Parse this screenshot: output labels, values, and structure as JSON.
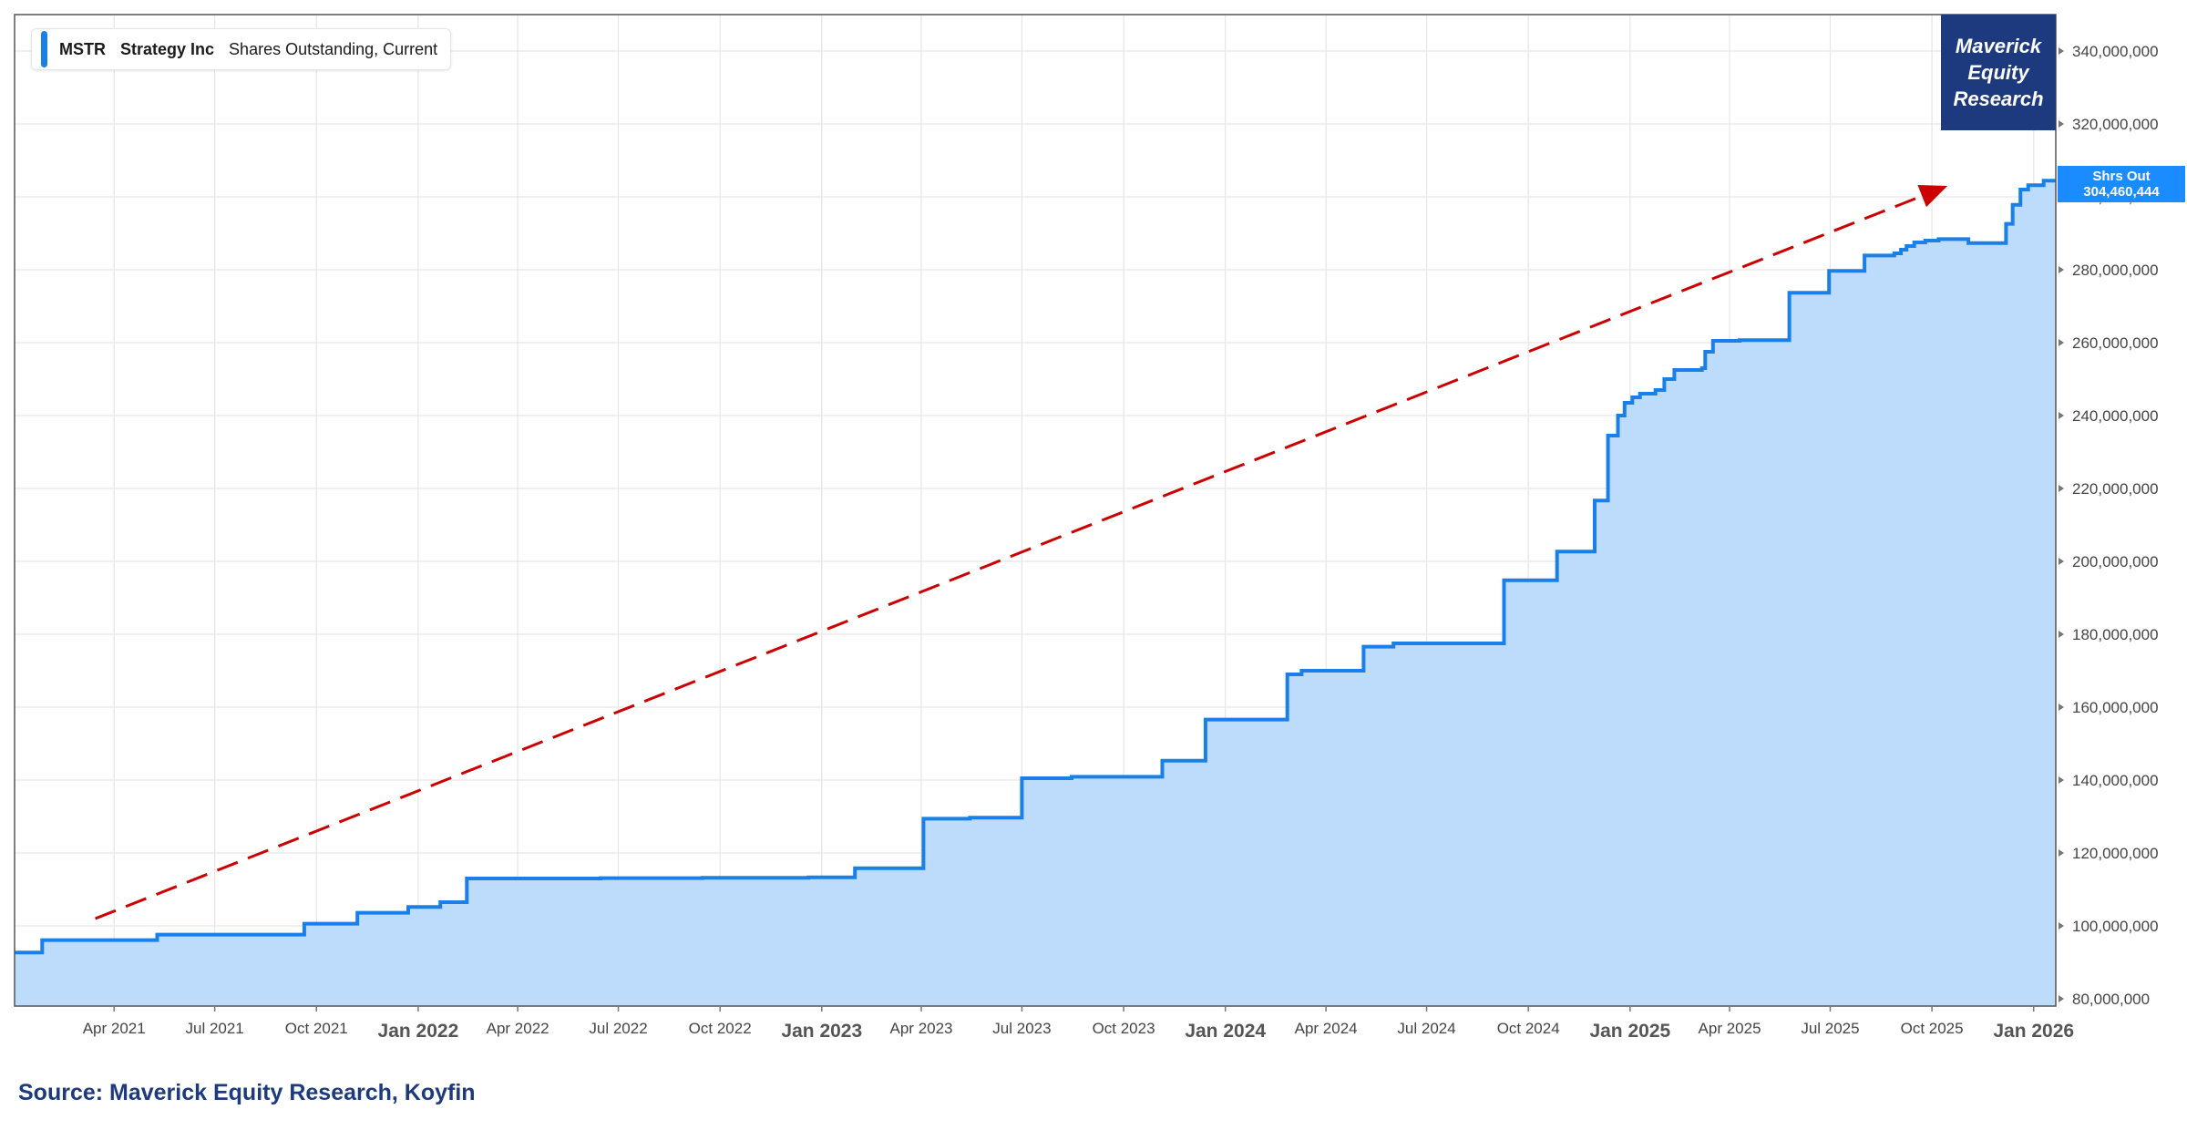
{
  "legend": {
    "ticker": "MSTR",
    "company": "Strategy Inc",
    "metric": "Shares Outstanding, Current",
    "color": "#1a80e8"
  },
  "branding": {
    "line1": "Maverick",
    "line2": "Equity",
    "line3": "Research",
    "color": "#1d3a7e"
  },
  "value_tag": {
    "label": "Shrs Out",
    "value": "304,460,444",
    "color": "#1a8cff"
  },
  "source": {
    "text": "Source: Maverick Equity Research, Koyfin",
    "color": "#1d3a7e"
  },
  "chart_data": {
    "type": "area",
    "title": "",
    "xlabel": "",
    "ylabel": "",
    "x_range": [
      "2021-01-01",
      "2026-01-21"
    ],
    "ylim": [
      78000000,
      350000000
    ],
    "y_ticks": [
      80000000,
      100000000,
      120000000,
      140000000,
      160000000,
      180000000,
      200000000,
      220000000,
      240000000,
      260000000,
      280000000,
      300000000,
      320000000,
      340000000
    ],
    "y_tick_labels": [
      "80,000,000",
      "100,000,000",
      "120,000,000",
      "140,000,000",
      "160,000,000",
      "180,000,000",
      "200,000,000",
      "220,000,000",
      "240,000,000",
      "260,000,000",
      "280,000,000",
      "300,000,000",
      "320,000,000",
      "340,000,000"
    ],
    "x_ticks": [
      {
        "date": "2021-04-01",
        "label": "Apr 2021",
        "major": false
      },
      {
        "date": "2021-07-01",
        "label": "Jul 2021",
        "major": false
      },
      {
        "date": "2021-10-01",
        "label": "Oct 2021",
        "major": false
      },
      {
        "date": "2022-01-01",
        "label": "Jan 2022",
        "major": true
      },
      {
        "date": "2022-04-01",
        "label": "Apr 2022",
        "major": false
      },
      {
        "date": "2022-07-01",
        "label": "Jul 2022",
        "major": false
      },
      {
        "date": "2022-10-01",
        "label": "Oct 2022",
        "major": false
      },
      {
        "date": "2023-01-01",
        "label": "Jan 2023",
        "major": true
      },
      {
        "date": "2023-04-01",
        "label": "Apr 2023",
        "major": false
      },
      {
        "date": "2023-07-01",
        "label": "Jul 2023",
        "major": false
      },
      {
        "date": "2023-10-01",
        "label": "Oct 2023",
        "major": false
      },
      {
        "date": "2024-01-01",
        "label": "Jan 2024",
        "major": true
      },
      {
        "date": "2024-04-01",
        "label": "Apr 2024",
        "major": false
      },
      {
        "date": "2024-07-01",
        "label": "Jul 2024",
        "major": false
      },
      {
        "date": "2024-10-01",
        "label": "Oct 2024",
        "major": false
      },
      {
        "date": "2025-01-01",
        "label": "Jan 2025",
        "major": true
      },
      {
        "date": "2025-04-01",
        "label": "Apr 2025",
        "major": false
      },
      {
        "date": "2025-07-01",
        "label": "Jul 2025",
        "major": false
      },
      {
        "date": "2025-10-01",
        "label": "Oct 2025",
        "major": false
      },
      {
        "date": "2026-01-01",
        "label": "Jan 2026",
        "major": true
      }
    ],
    "grid": true,
    "legend_position": "top-left",
    "series": [
      {
        "name": "Shares Outstanding, Current",
        "color": "#1a80e8",
        "fill": "#bddcfb",
        "step": true,
        "points": [
          [
            "2021-01-01",
            92700000
          ],
          [
            "2021-01-26",
            96100000
          ],
          [
            "2021-05-10",
            97600000
          ],
          [
            "2021-09-20",
            100600000
          ],
          [
            "2021-11-07",
            103600000
          ],
          [
            "2021-12-23",
            105200000
          ],
          [
            "2022-01-21",
            106500000
          ],
          [
            "2022-02-14",
            113000000
          ],
          [
            "2022-06-15",
            113100000
          ],
          [
            "2022-09-15",
            113200000
          ],
          [
            "2022-12-20",
            113300000
          ],
          [
            "2023-01-31",
            115800000
          ],
          [
            "2023-04-03",
            129400000
          ],
          [
            "2023-05-15",
            129700000
          ],
          [
            "2023-07-01",
            140500000
          ],
          [
            "2023-08-15",
            140900000
          ],
          [
            "2023-11-05",
            145300000
          ],
          [
            "2023-12-14",
            156600000
          ],
          [
            "2024-02-26",
            169000000
          ],
          [
            "2024-03-10",
            170000000
          ],
          [
            "2024-05-05",
            176600000
          ],
          [
            "2024-06-01",
            177500000
          ],
          [
            "2024-09-09",
            194800000
          ],
          [
            "2024-10-27",
            202700000
          ],
          [
            "2024-11-30",
            216700000
          ],
          [
            "2024-12-12",
            234500000
          ],
          [
            "2024-12-21",
            240000000
          ],
          [
            "2024-12-27",
            243500000
          ],
          [
            "2025-01-03",
            245000000
          ],
          [
            "2025-01-10",
            246000000
          ],
          [
            "2025-01-24",
            247000000
          ],
          [
            "2025-02-01",
            250000000
          ],
          [
            "2025-02-10",
            252500000
          ],
          [
            "2025-03-07",
            253000000
          ],
          [
            "2025-03-10",
            257500000
          ],
          [
            "2025-03-17",
            260500000
          ],
          [
            "2025-04-10",
            260700000
          ],
          [
            "2025-05-25",
            273700000
          ],
          [
            "2025-06-30",
            279700000
          ],
          [
            "2025-08-01",
            283900000
          ],
          [
            "2025-08-28",
            284500000
          ],
          [
            "2025-09-03",
            285500000
          ],
          [
            "2025-09-08",
            286500000
          ],
          [
            "2025-09-15",
            287500000
          ],
          [
            "2025-09-25",
            288000000
          ],
          [
            "2025-10-07",
            288400000
          ],
          [
            "2025-11-03",
            287300000
          ],
          [
            "2025-12-07",
            292600000
          ],
          [
            "2025-12-13",
            297800000
          ],
          [
            "2025-12-20",
            302000000
          ],
          [
            "2025-12-27",
            303200000
          ],
          [
            "2026-01-10",
            304460444
          ],
          [
            "2026-01-21",
            304460444
          ]
        ]
      }
    ],
    "annotations": [
      {
        "type": "dashed-arrow",
        "color": "#cc0000",
        "from": {
          "date": "2021-03-15",
          "value": 102000000
        },
        "to": {
          "date": "2025-10-15",
          "value": 303000000
        }
      }
    ]
  }
}
